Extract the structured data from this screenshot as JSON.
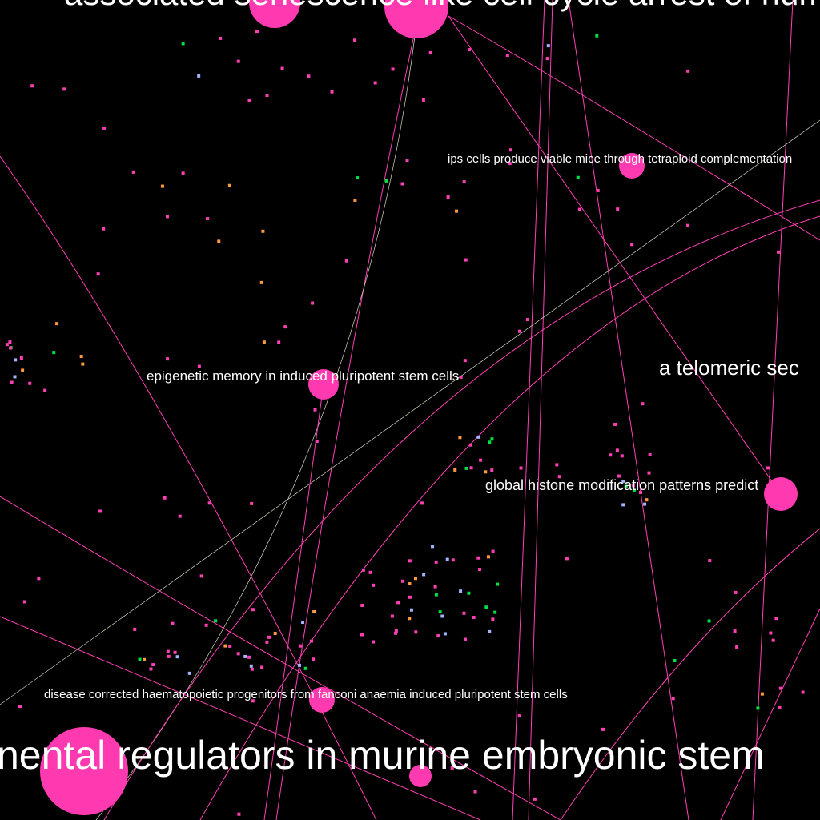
{
  "nodes": [
    {
      "label": "associated senescence like cell cycle arrest of human"
    },
    {
      "label": "ips cells produce viable mice through tetraploid complementation"
    },
    {
      "label": "a telomeric sec"
    },
    {
      "label": "epigenetic memory in induced pluripotent stem cells"
    },
    {
      "label": "global histone modification patterns predict"
    },
    {
      "label": "disease corrected haematopoietic progenitors from fanconi anaemia induced pluripotent stem cells"
    },
    {
      "label": "nental regulators in murine embryonic stem"
    }
  ]
}
